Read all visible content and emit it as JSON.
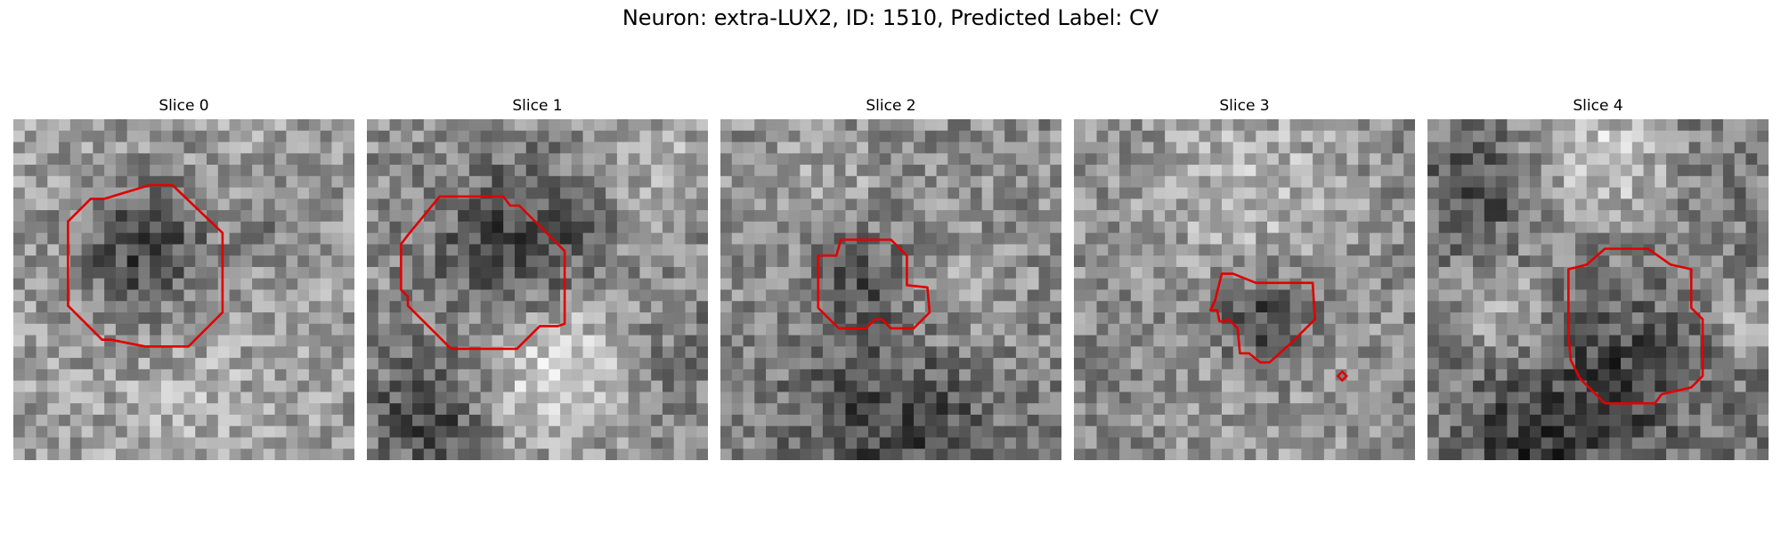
{
  "figure": {
    "title": "Neuron: extra-LUX2, ID: 1510, Predicted Label: CV"
  },
  "contour_color": "#e00000",
  "grid_size": 30,
  "slices": [
    {
      "title": "Slice 0",
      "description": "grayscale noisy patch with dark roundish region, octagon-like contour",
      "contour": [
        [
          12,
          5.8
        ],
        [
          14,
          5.8
        ],
        [
          18.4,
          10
        ],
        [
          18.4,
          17
        ],
        [
          15.4,
          20
        ],
        [
          11.6,
          20
        ],
        [
          8.6,
          19.4
        ],
        [
          7.8,
          19.4
        ],
        [
          4.8,
          16.4
        ],
        [
          4.8,
          9
        ],
        [
          6.8,
          7
        ],
        [
          8,
          7
        ]
      ]
    },
    {
      "title": "Slice 1",
      "description": "grayscale patch with large dark cell at top, bright band below",
      "contour": [
        [
          6.4,
          6.8
        ],
        [
          12,
          6.8
        ],
        [
          12.6,
          7.6
        ],
        [
          13.4,
          7.6
        ],
        [
          17.4,
          11.6
        ],
        [
          17.4,
          18
        ],
        [
          16.8,
          18.2
        ],
        [
          15.2,
          18.2
        ],
        [
          13.2,
          20.2
        ],
        [
          7.4,
          20.2
        ],
        [
          3.6,
          16.4
        ],
        [
          3.6,
          15.6
        ],
        [
          3,
          15
        ],
        [
          3,
          11
        ],
        [
          3.6,
          10.2
        ]
      ]
    },
    {
      "title": "Slice 2",
      "description": "grayscale patch with small dark blob outlined in the center",
      "contour": [
        [
          10.6,
          10.6
        ],
        [
          15,
          10.6
        ],
        [
          16.4,
          12
        ],
        [
          16.4,
          14.6
        ],
        [
          18.2,
          14.8
        ],
        [
          18.4,
          17
        ],
        [
          17,
          18.4
        ],
        [
          15,
          18.4
        ],
        [
          14.2,
          17.6
        ],
        [
          13.6,
          17.6
        ],
        [
          12.8,
          18.4
        ],
        [
          10.4,
          18.4
        ],
        [
          8.6,
          16.6
        ],
        [
          8.6,
          12
        ],
        [
          10.2,
          12
        ]
      ]
    },
    {
      "title": "Slice 3",
      "description": "grayscale patch with small irregular dark region and a tiny contour blip",
      "contour": [
        [
          13,
          13.6
        ],
        [
          14,
          13.6
        ],
        [
          16,
          14.4
        ],
        [
          21,
          14.4
        ],
        [
          21.2,
          17.6
        ],
        [
          19.2,
          19.6
        ],
        [
          17.2,
          21.4
        ],
        [
          16.4,
          21.4
        ],
        [
          15.4,
          20.6
        ],
        [
          14.6,
          20.6
        ],
        [
          14.4,
          18.4
        ],
        [
          13.6,
          17.6
        ],
        [
          13.2,
          17.8
        ],
        [
          12.8,
          17.8
        ],
        [
          12.6,
          16.8
        ],
        [
          12,
          16.8
        ],
        [
          12.4,
          16
        ]
      ]
    },
    {
      "title": "Slice 4",
      "description": "grayscale patch with bright band on top and dark cell outlined below",
      "contour": [
        [
          15.6,
          11.4
        ],
        [
          19.4,
          11.4
        ],
        [
          21.4,
          12.8
        ],
        [
          23.2,
          13.2
        ],
        [
          23.2,
          16.6
        ],
        [
          24.2,
          17.6
        ],
        [
          24.2,
          22.6
        ],
        [
          23.2,
          23.6
        ],
        [
          20.6,
          24.2
        ],
        [
          20,
          25
        ],
        [
          15.6,
          25
        ],
        [
          13.4,
          22.8
        ],
        [
          12.6,
          21.2
        ],
        [
          12.4,
          19
        ],
        [
          12.4,
          13.2
        ],
        [
          14,
          12.8
        ]
      ]
    }
  ]
}
